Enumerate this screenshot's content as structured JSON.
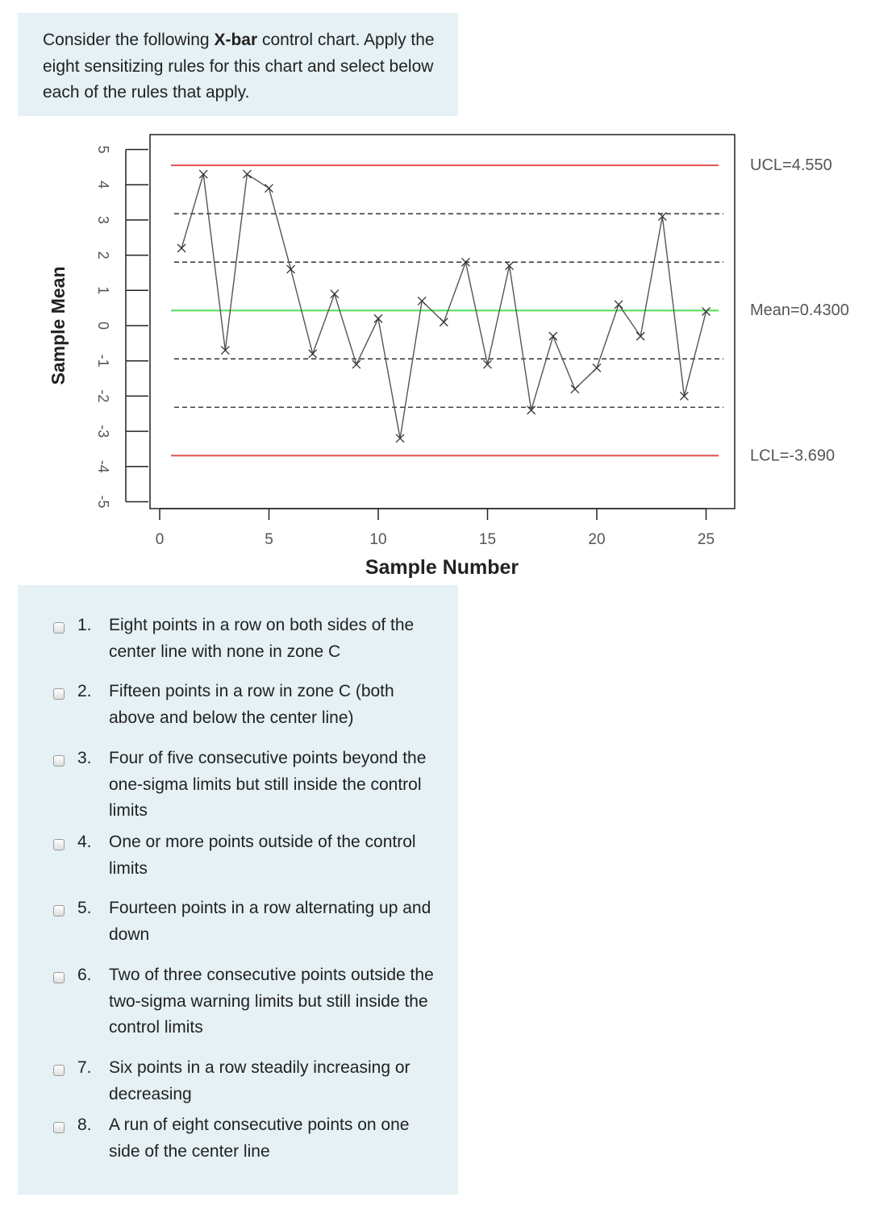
{
  "question": {
    "prompt_before": "Consider the following ",
    "prompt_bold": "X-bar",
    "prompt_after": " control chart. Apply the eight sensitizing rules for this chart and select below each of the rules that apply."
  },
  "chart_data": {
    "type": "line",
    "xlabel": "Sample Number",
    "ylabel": "Sample Mean",
    "x_ticks": [
      0,
      5,
      10,
      15,
      20,
      25
    ],
    "y_ticks": [
      5,
      4,
      3,
      2,
      1,
      0,
      -1,
      -2,
      -3,
      -4,
      -5
    ],
    "xlim": [
      0,
      26
    ],
    "ylim": [
      -5,
      5
    ],
    "grid": false,
    "series": [
      {
        "x": [
          1,
          2,
          3,
          4,
          5,
          6,
          7,
          8,
          9,
          10,
          11,
          12,
          13,
          14,
          15,
          16,
          17,
          18,
          19,
          20,
          21,
          22,
          23,
          24,
          25
        ],
        "values": [
          2.2,
          4.3,
          -0.7,
          4.3,
          3.9,
          1.6,
          -0.8,
          0.9,
          -1.1,
          0.2,
          -3.2,
          0.7,
          0.1,
          1.8,
          -1.1,
          1.7,
          -2.4,
          -0.3,
          -1.8,
          -1.2,
          0.6,
          -0.3,
          3.1,
          -2.0,
          0.4
        ],
        "color": "#555555"
      }
    ],
    "reference_lines": [
      {
        "value": 4.55,
        "label": "UCL=4.550",
        "color": "#e05050",
        "style": "solid"
      },
      {
        "value": 0.43,
        "label": "Mean=0.4300",
        "color": "#55dd55",
        "style": "solid"
      },
      {
        "value": -3.69,
        "label": "LCL=-3.690",
        "color": "#e05050",
        "style": "solid"
      },
      {
        "value": 3.177,
        "color": "#222222",
        "style": "dashed"
      },
      {
        "value": 1.803,
        "color": "#222222",
        "style": "dashed"
      },
      {
        "value": -0.943,
        "color": "#222222",
        "style": "dashed"
      },
      {
        "value": -2.317,
        "color": "#222222",
        "style": "dashed"
      }
    ]
  },
  "options": [
    {
      "num": "1.",
      "text": "Eight points in a row on both sides of the center line with none in zone C"
    },
    {
      "num": "2.",
      "text": "Fifteen points in a row in zone C (both above and below the center line)"
    },
    {
      "num": "3.",
      "text": "Four of five consecutive points beyond the one-sigma limits but still inside the control limits"
    },
    {
      "num": "4.",
      "text": "One or more points outside of the control limits"
    },
    {
      "num": "5.",
      "text": "Fourteen points in a row alternating up and down"
    },
    {
      "num": "6.",
      "text": "Two of three consecutive points outside the two-sigma warning limits but still inside the control limits"
    },
    {
      "num": "7.",
      "text": "Six points in a row steadily increasing or decreasing"
    },
    {
      "num": "8.",
      "text": "A run of eight consecutive points on one side of the center line"
    }
  ]
}
